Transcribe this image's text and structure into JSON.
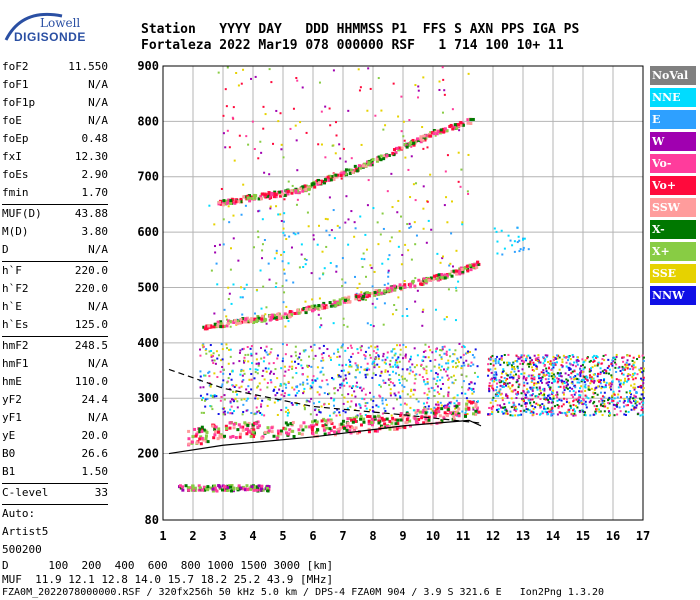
{
  "logo": {
    "line1": "Lowell",
    "line2": "DIGISONDE"
  },
  "header": {
    "row1": "Station   YYYY DAY   DDD HHMMSS P1  FFS S AXN PPS IGA PS",
    "row2": "Fortaleza 2022 Mar19 078 000000 RSF   1 714 100 10+ 11"
  },
  "params": [
    {
      "name": "foF2",
      "value": "11.550"
    },
    {
      "name": "foF1",
      "value": "N/A"
    },
    {
      "name": "foF1p",
      "value": "N/A"
    },
    {
      "name": "foE",
      "value": "N/A"
    },
    {
      "name": "foEp",
      "value": "0.48"
    },
    {
      "name": "fxI",
      "value": "12.30"
    },
    {
      "name": "foEs",
      "value": "2.90"
    },
    {
      "name": "fmin",
      "value": "1.70"
    },
    {
      "sep": true
    },
    {
      "name": "MUF(D)",
      "value": "43.88"
    },
    {
      "name": "M(D)",
      "value": "3.80"
    },
    {
      "name": "D",
      "value": "N/A"
    },
    {
      "sep": true
    },
    {
      "name": "h`F",
      "value": "220.0"
    },
    {
      "name": "h`F2",
      "value": "220.0"
    },
    {
      "name": "h`E",
      "value": "N/A"
    },
    {
      "name": "h`Es",
      "value": "125.0"
    },
    {
      "sep": true
    },
    {
      "name": "hmF2",
      "value": "248.5"
    },
    {
      "name": "hmF1",
      "value": "N/A"
    },
    {
      "name": "hmE",
      "value": "110.0"
    },
    {
      "name": "yF2",
      "value": "24.4"
    },
    {
      "name": "yF1",
      "value": "N/A"
    },
    {
      "name": "yE",
      "value": "20.0"
    },
    {
      "name": "B0",
      "value": "26.6"
    },
    {
      "name": "B1",
      "value": "1.50"
    },
    {
      "sep": true
    },
    {
      "name": "C-level",
      "value": "33"
    },
    {
      "sep": true
    },
    {
      "name": "Auto:",
      "value": ""
    },
    {
      "name": "Artist5",
      "value": ""
    },
    {
      "name": "500200",
      "value": ""
    }
  ],
  "legend": [
    {
      "label": "NoVal",
      "color": "#808080"
    },
    {
      "label": "NNE",
      "color": "#00dcff"
    },
    {
      "label": "E",
      "color": "#2ea0ff"
    },
    {
      "label": "W",
      "color": "#a000b0"
    },
    {
      "label": "Vo-",
      "color": "#ff3c9c"
    },
    {
      "label": "Vo+",
      "color": "#ff0a3c"
    },
    {
      "label": "SSW",
      "color": "#ff9c9c"
    },
    {
      "label": "X-",
      "color": "#007800"
    },
    {
      "label": "X+",
      "color": "#88cc44"
    },
    {
      "label": "SSE",
      "color": "#e6d200"
    },
    {
      "label": "NNW",
      "color": "#1010e6"
    }
  ],
  "bottom": {
    "line1": "D      100  200  400  600  800 1000 1500 3000 [km]",
    "line2": "MUF  11.9 12.1 12.8 14.0 15.7 18.2 25.2 43.9 [MHz]",
    "line3": "FZA0M_2022078000000.RSF / 320fx256h 50 kHz 5.0 km / DPS-4 FZA0M 904 / 3.9 S 321.6 E   Ion2Png 1.3.20"
  },
  "chart_data": {
    "type": "scatter",
    "title": "",
    "xlabel": "",
    "ylabel": "",
    "xlim": [
      1,
      17
    ],
    "ylim": [
      80,
      900
    ],
    "x_ticks": [
      1,
      2,
      3,
      4,
      5,
      6,
      7,
      8,
      9,
      10,
      11,
      12,
      13,
      14,
      15,
      16,
      17
    ],
    "y_ticks": [
      80,
      200,
      300,
      400,
      500,
      600,
      700,
      800,
      900
    ],
    "grid": true,
    "traces": [
      {
        "name": "Es trace",
        "x": [
          1.5,
          4.5
        ],
        "y": [
          140,
          140
        ]
      },
      {
        "name": "F2 trace (O)",
        "x": [
          1.8,
          3.0,
          5.0,
          7.0,
          9.0,
          10.5,
          11.5
        ],
        "y": [
          230,
          245,
          245,
          252,
          262,
          275,
          285
        ]
      },
      {
        "name": "2nd multiple",
        "x": [
          2.3,
          5.0,
          8.0,
          10.5,
          11.5
        ],
        "y": [
          432,
          452,
          492,
          525,
          545
        ]
      },
      {
        "name": "3rd multiple",
        "x": [
          2.8,
          5.5,
          8.0,
          10.0,
          11.3
        ],
        "y": [
          655,
          678,
          730,
          782,
          805
        ]
      }
    ],
    "profile_line": {
      "x": [
        1.2,
        3.0,
        6.0,
        9.0,
        11.2,
        11.6
      ],
      "y": [
        200,
        215,
        230,
        250,
        260,
        250
      ]
    },
    "dashed_line": {
      "x": [
        1.2,
        3.0,
        6.0,
        9.0,
        11.6
      ],
      "y": [
        352,
        318,
        285,
        270,
        255
      ]
    }
  }
}
